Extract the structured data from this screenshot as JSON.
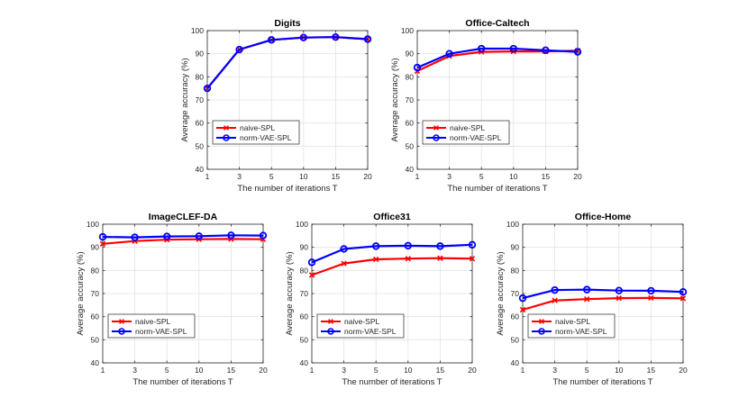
{
  "chart_data": [
    {
      "type": "line",
      "title": "Digits",
      "xlabel": "The number of iterations T",
      "ylabel": "Average accuracy (%)",
      "categories": [
        "1",
        "3",
        "5",
        "10",
        "15",
        "20"
      ],
      "ylim": [
        40,
        100
      ],
      "yticks": [
        40,
        50,
        60,
        70,
        80,
        90,
        100
      ],
      "grid": true,
      "legend_position": "lower-left",
      "series": [
        {
          "name": "naive-SPL",
          "color": "#ff0000",
          "marker": "x",
          "values": [
            75,
            91.8,
            96,
            97,
            97.2,
            96.3
          ]
        },
        {
          "name": "norm-VAE-SPL",
          "color": "#0000ff",
          "marker": "o",
          "values": [
            75,
            91.8,
            96,
            97,
            97.2,
            96.3
          ]
        }
      ]
    },
    {
      "type": "line",
      "title": "Office-Caltech",
      "xlabel": "The number of iterations T",
      "ylabel": "Average accuracy (%)",
      "categories": [
        "1",
        "3",
        "5",
        "10",
        "15",
        "20"
      ],
      "ylim": [
        40,
        100
      ],
      "yticks": [
        40,
        50,
        60,
        70,
        80,
        90,
        100
      ],
      "grid": true,
      "legend_position": "lower-left",
      "series": [
        {
          "name": "naive-SPL",
          "color": "#ff0000",
          "marker": "x",
          "values": [
            82.5,
            89,
            90.8,
            91,
            91,
            91.3
          ]
        },
        {
          "name": "norm-VAE-SPL",
          "color": "#0000ff",
          "marker": "o",
          "values": [
            84,
            90,
            92.2,
            92.2,
            91.5,
            90.8
          ]
        }
      ]
    },
    {
      "type": "line",
      "title": "ImageCLEF-DA",
      "xlabel": "The number of iterations T",
      "ylabel": "Average accuracy (%)",
      "categories": [
        "1",
        "3",
        "5",
        "10",
        "15",
        "20"
      ],
      "ylim": [
        40,
        100
      ],
      "yticks": [
        40,
        50,
        60,
        70,
        80,
        90,
        100
      ],
      "grid": true,
      "legend_position": "lower-left",
      "series": [
        {
          "name": "naive-SPL",
          "color": "#ff0000",
          "marker": "x",
          "values": [
            91.5,
            92.7,
            93.3,
            93.5,
            93.6,
            93.5
          ]
        },
        {
          "name": "norm-VAE-SPL",
          "color": "#0000ff",
          "marker": "o",
          "values": [
            94.5,
            94.3,
            94.7,
            94.8,
            95.2,
            95.1
          ]
        }
      ]
    },
    {
      "type": "line",
      "title": "Office31",
      "xlabel": "The number of iterations T",
      "ylabel": "Average accuracy (%)",
      "categories": [
        "1",
        "3",
        "5",
        "10",
        "15",
        "20"
      ],
      "ylim": [
        40,
        100
      ],
      "yticks": [
        40,
        50,
        60,
        70,
        80,
        90,
        100
      ],
      "grid": true,
      "legend_position": "lower-left",
      "series": [
        {
          "name": "naive-SPL",
          "color": "#ff0000",
          "marker": "x",
          "values": [
            78,
            83,
            84.8,
            85.1,
            85.3,
            85.1
          ]
        },
        {
          "name": "norm-VAE-SPL",
          "color": "#0000ff",
          "marker": "o",
          "values": [
            83.5,
            89.3,
            90.5,
            90.7,
            90.5,
            91.1
          ]
        }
      ]
    },
    {
      "type": "line",
      "title": "Office-Home",
      "xlabel": "The number of iterations T",
      "ylabel": "Average accuracy (%)",
      "categories": [
        "1",
        "3",
        "5",
        "10",
        "15",
        "20"
      ],
      "ylim": [
        40,
        100
      ],
      "yticks": [
        40,
        50,
        60,
        70,
        80,
        90,
        100
      ],
      "grid": true,
      "legend_position": "lower-left",
      "series": [
        {
          "name": "naive-SPL",
          "color": "#ff0000",
          "marker": "x",
          "values": [
            63,
            67,
            67.6,
            68,
            68.1,
            67.9
          ]
        },
        {
          "name": "norm-VAE-SPL",
          "color": "#0000ff",
          "marker": "o",
          "values": [
            68,
            71.5,
            71.7,
            71.3,
            71.2,
            70.7
          ]
        }
      ]
    }
  ]
}
